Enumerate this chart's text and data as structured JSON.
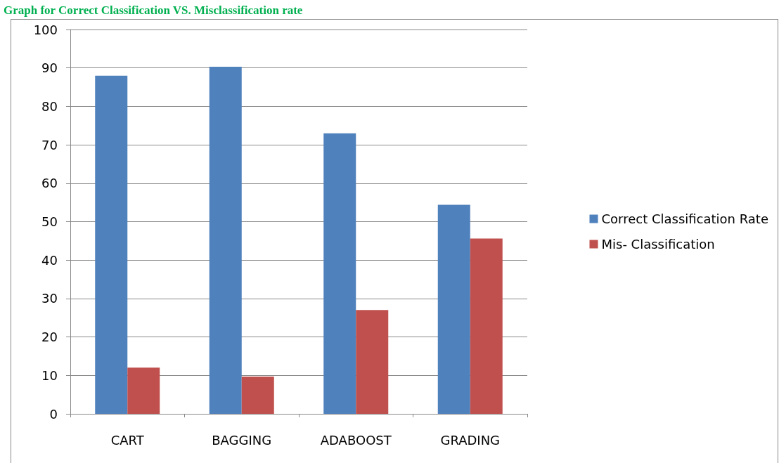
{
  "chart_data": {
    "type": "bar",
    "title": "Graph for Correct Classification VS. Misclassification rate",
    "categories": [
      "CART",
      "BAGGING",
      "ADABOOST",
      "GRADING"
    ],
    "series": [
      {
        "name": "Correct Classification Rate",
        "color": "#4f81bd",
        "values": [
          88,
          90.3,
          73,
          54.4
        ]
      },
      {
        "name": "Mis- Classification",
        "color": "#c0504d",
        "values": [
          12,
          9.7,
          27,
          45.6
        ]
      }
    ],
    "ylim": [
      0,
      100
    ],
    "yticks": [
      0,
      10,
      20,
      30,
      40,
      50,
      60,
      70,
      80,
      90,
      100
    ],
    "grid": "y",
    "legend": "right"
  }
}
